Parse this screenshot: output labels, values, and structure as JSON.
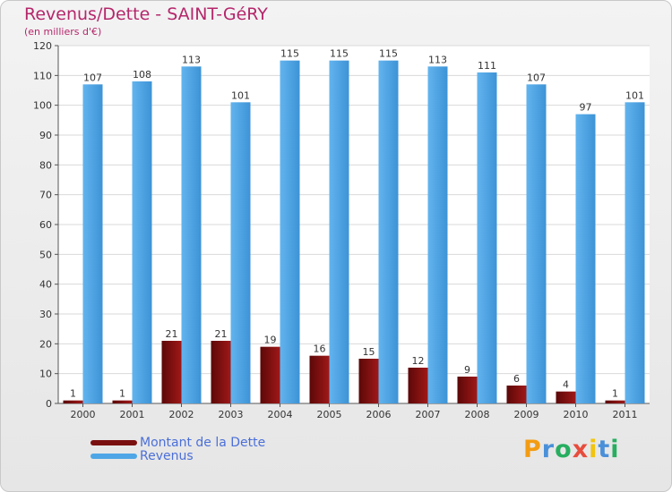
{
  "chart_data": {
    "type": "bar",
    "title": "Revenus/Dette - SAINT-GéRY",
    "subtitle": "(en milliers d'€)",
    "categories": [
      "2000",
      "2001",
      "2002",
      "2003",
      "2004",
      "2005",
      "2006",
      "2007",
      "2008",
      "2009",
      "2010",
      "2011"
    ],
    "series": [
      {
        "name": "Montant de la Dette",
        "color": "#7a0f0f",
        "values": [
          1,
          1,
          21,
          21,
          19,
          16,
          15,
          12,
          9,
          6,
          4,
          1
        ]
      },
      {
        "name": "Revenus",
        "color": "#4ea6e6",
        "values": [
          107,
          108,
          113,
          101,
          115,
          115,
          115,
          113,
          111,
          107,
          97,
          101
        ]
      }
    ],
    "ylim": [
      0,
      120
    ],
    "yticks": [
      0,
      10,
      20,
      30,
      40,
      50,
      60,
      70,
      80,
      90,
      100,
      110,
      120
    ],
    "grid": true,
    "legend": "bottom-left"
  },
  "branding": {
    "logo_letters": [
      "P",
      "r",
      "o",
      "x",
      "i",
      "t",
      "i"
    ],
    "logo_colors": [
      "#f39c12",
      "#4a90d9",
      "#27ae60",
      "#e74c3c",
      "#f1c40f",
      "#4a90d9",
      "#27ae60"
    ]
  }
}
